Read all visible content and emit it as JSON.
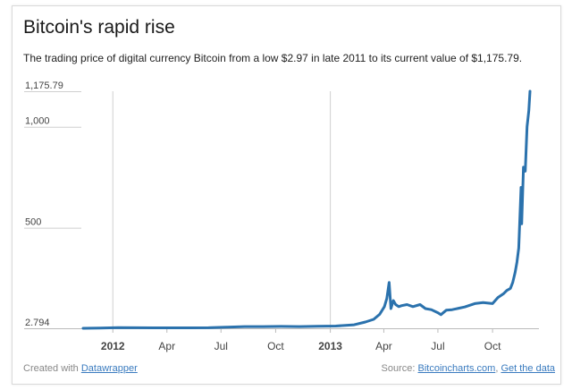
{
  "header": {
    "title": "Bitcoin's rapid rise",
    "subtitle": "The trading price of digital currency Bitcoin from a low $2.97 in late 2011 to its current value of $1,175.79."
  },
  "footer": {
    "credit_prefix": "Created with",
    "credit_link": "Datawrapper",
    "source_prefix": "Source:",
    "source_link": "Bitcoincharts.com",
    "separator": ",",
    "get_data_link": "Get the data"
  },
  "chart_data": {
    "type": "line",
    "title": "Bitcoin's rapid rise",
    "xlabel": "",
    "ylabel": "",
    "y_ticks": [
      2.794,
      500,
      1000,
      1175.79
    ],
    "y_tick_labels": [
      "2.794",
      "500",
      "1,000",
      "1,175.79"
    ],
    "ylim": [
      2.794,
      1175.79
    ],
    "xlim": [
      "2011-11-12",
      "2013-12-03"
    ],
    "x_ticks": [
      "2012-01-01",
      "2012-04-01",
      "2012-07-01",
      "2012-10-01",
      "2013-01-01",
      "2013-04-01",
      "2013-07-01",
      "2013-10-01"
    ],
    "x_tick_labels": [
      "2012",
      "Apr",
      "Jul",
      "Oct",
      "2013",
      "Apr",
      "Jul",
      "Oct"
    ],
    "grid": "vertical lines at year starts",
    "line_color": "#2b72ad",
    "series": [
      {
        "x": [
          "2011-11-12",
          "2011-12-10",
          "2012-01-10",
          "2012-02-10",
          "2012-03-10",
          "2012-04-10",
          "2012-05-10",
          "2012-06-10",
          "2012-07-10",
          "2012-08-10",
          "2012-09-10",
          "2012-10-10",
          "2012-11-10",
          "2012-12-10",
          "2013-01-10",
          "2013-02-10",
          "2013-03-01",
          "2013-03-15",
          "2013-03-25",
          "2013-04-02",
          "2013-04-06",
          "2013-04-10",
          "2013-04-13",
          "2013-04-17",
          "2013-04-21",
          "2013-04-26",
          "2013-05-01",
          "2013-05-10",
          "2013-05-20",
          "2013-06-01",
          "2013-06-10",
          "2013-06-20",
          "2013-07-01",
          "2013-07-06",
          "2013-07-15",
          "2013-07-25",
          "2013-08-05",
          "2013-08-15",
          "2013-09-01",
          "2013-09-15",
          "2013-10-01",
          "2013-10-10",
          "2013-10-20",
          "2013-10-25",
          "2013-10-31",
          "2013-11-04",
          "2013-11-08",
          "2013-11-11",
          "2013-11-14",
          "2013-11-18",
          "2013-11-19",
          "2013-11-22",
          "2013-11-25",
          "2013-11-28",
          "2013-12-01",
          "2013-12-03"
        ],
        "y": [
          2.97,
          3.5,
          6.5,
          5.5,
          4.9,
          5,
          5.1,
          5.5,
          8,
          11,
          11,
          12,
          11,
          13,
          14,
          20,
          34,
          47,
          72,
          110,
          150,
          230,
          100,
          140,
          120,
          110,
          115,
          120,
          110,
          120,
          100,
          95,
          80,
          70,
          92,
          95,
          102,
          108,
          125,
          130,
          125,
          155,
          175,
          190,
          200,
          230,
          280,
          330,
          400,
          700,
          520,
          800,
          780,
          1000,
          1080,
          1175.79
        ]
      }
    ]
  }
}
